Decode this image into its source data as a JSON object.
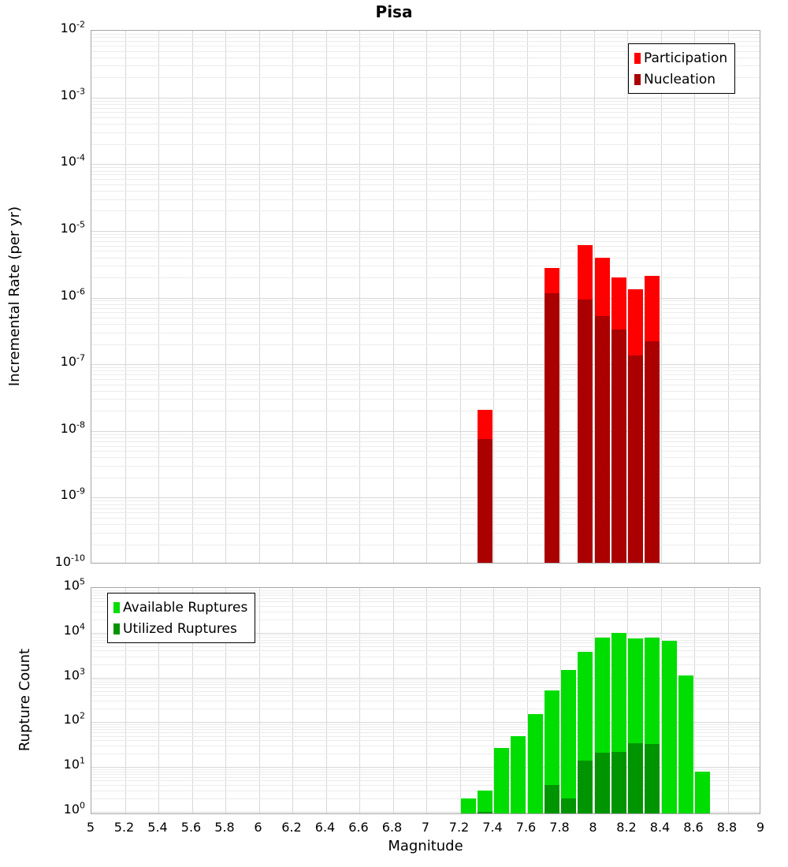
{
  "title": "Pisa",
  "x_axis": {
    "label": "Magnitude",
    "range": [
      5,
      9
    ],
    "tick_values": [
      5,
      5.2,
      5.4,
      5.6,
      5.8,
      6,
      6.2,
      6.4,
      6.6,
      6.8,
      7,
      7.2,
      7.4,
      7.6,
      7.8,
      8,
      8.2,
      8.4,
      8.6,
      8.8,
      9
    ],
    "tick_labels": [
      "5",
      "5.2",
      "5.4",
      "5.6",
      "5.8",
      "6",
      "6.2",
      "6.4",
      "6.6",
      "6.8",
      "7",
      "7.2",
      "7.4",
      "7.6",
      "7.8",
      "8",
      "8.2",
      "8.4",
      "8.6",
      "8.8",
      "9"
    ]
  },
  "top_plot": {
    "y_label": "Incremental Rate (per yr)",
    "y_tick_exponents": [
      -2,
      -3,
      -4,
      -5,
      -6,
      -7,
      -8,
      -9,
      -10
    ],
    "legend": [
      {
        "label": "Participation",
        "color": "#ff0000"
      },
      {
        "label": "Nucleation",
        "color": "#aa0000"
      }
    ]
  },
  "bottom_plot": {
    "y_label": "Rupture Count",
    "y_tick_exponents": [
      5,
      4,
      3,
      2,
      1,
      0
    ],
    "legend": [
      {
        "label": "Available Ruptures",
        "color": "#00dd00"
      },
      {
        "label": "Utilized Ruptures",
        "color": "#009400"
      }
    ]
  },
  "colors": {
    "participation": "#ff0000",
    "nucleation": "#aa0000",
    "available": "#00dd00",
    "utilized": "#009400",
    "grid_major": "#d8d8d8",
    "grid_minor": "#ececec",
    "frame": "#a6a6a6"
  },
  "chart_data": [
    {
      "type": "bar",
      "title": "Pisa",
      "xlabel": "Magnitude",
      "ylabel": "Incremental Rate (per yr)",
      "yscale": "log",
      "xlim": [
        5,
        9
      ],
      "ylim": [
        1e-10,
        0.01
      ],
      "bin_width": 0.1,
      "grid": true,
      "legend_position": "top-right",
      "x": [
        7.35,
        7.75,
        7.95,
        8.05,
        8.15,
        8.25,
        8.35
      ],
      "series": [
        {
          "name": "Participation",
          "values": [
            2.1e-08,
            2.8e-06,
            6.1e-06,
            4e-06,
            2e-06,
            1.33e-06,
            2.1e-06
          ]
        },
        {
          "name": "Nucleation",
          "values": [
            7.5e-09,
            1.15e-06,
            9.3e-07,
            5.3e-07,
            3.3e-07,
            1.35e-07,
            2.2e-07
          ]
        }
      ]
    },
    {
      "type": "bar",
      "title": "",
      "xlabel": "Magnitude",
      "ylabel": "Rupture Count",
      "yscale": "log",
      "xlim": [
        5,
        9
      ],
      "ylim": [
        1,
        100000.0
      ],
      "bin_width": 0.1,
      "grid": true,
      "legend_position": "top-left",
      "x": [
        7.25,
        7.35,
        7.45,
        7.55,
        7.65,
        7.75,
        7.85,
        7.95,
        8.05,
        8.15,
        8.25,
        8.35,
        8.45,
        8.55,
        8.65
      ],
      "series": [
        {
          "name": "Available Ruptures",
          "values": [
            2,
            3,
            27,
            50,
            150,
            510,
            1500,
            3800,
            7700,
            10000,
            7400,
            7700,
            6700,
            1100,
            8
          ]
        },
        {
          "name": "Utilized Ruptures",
          "values": [
            0,
            1,
            0,
            0,
            0,
            4,
            2,
            14,
            21,
            22,
            34,
            33,
            0,
            0,
            0
          ]
        }
      ]
    }
  ]
}
